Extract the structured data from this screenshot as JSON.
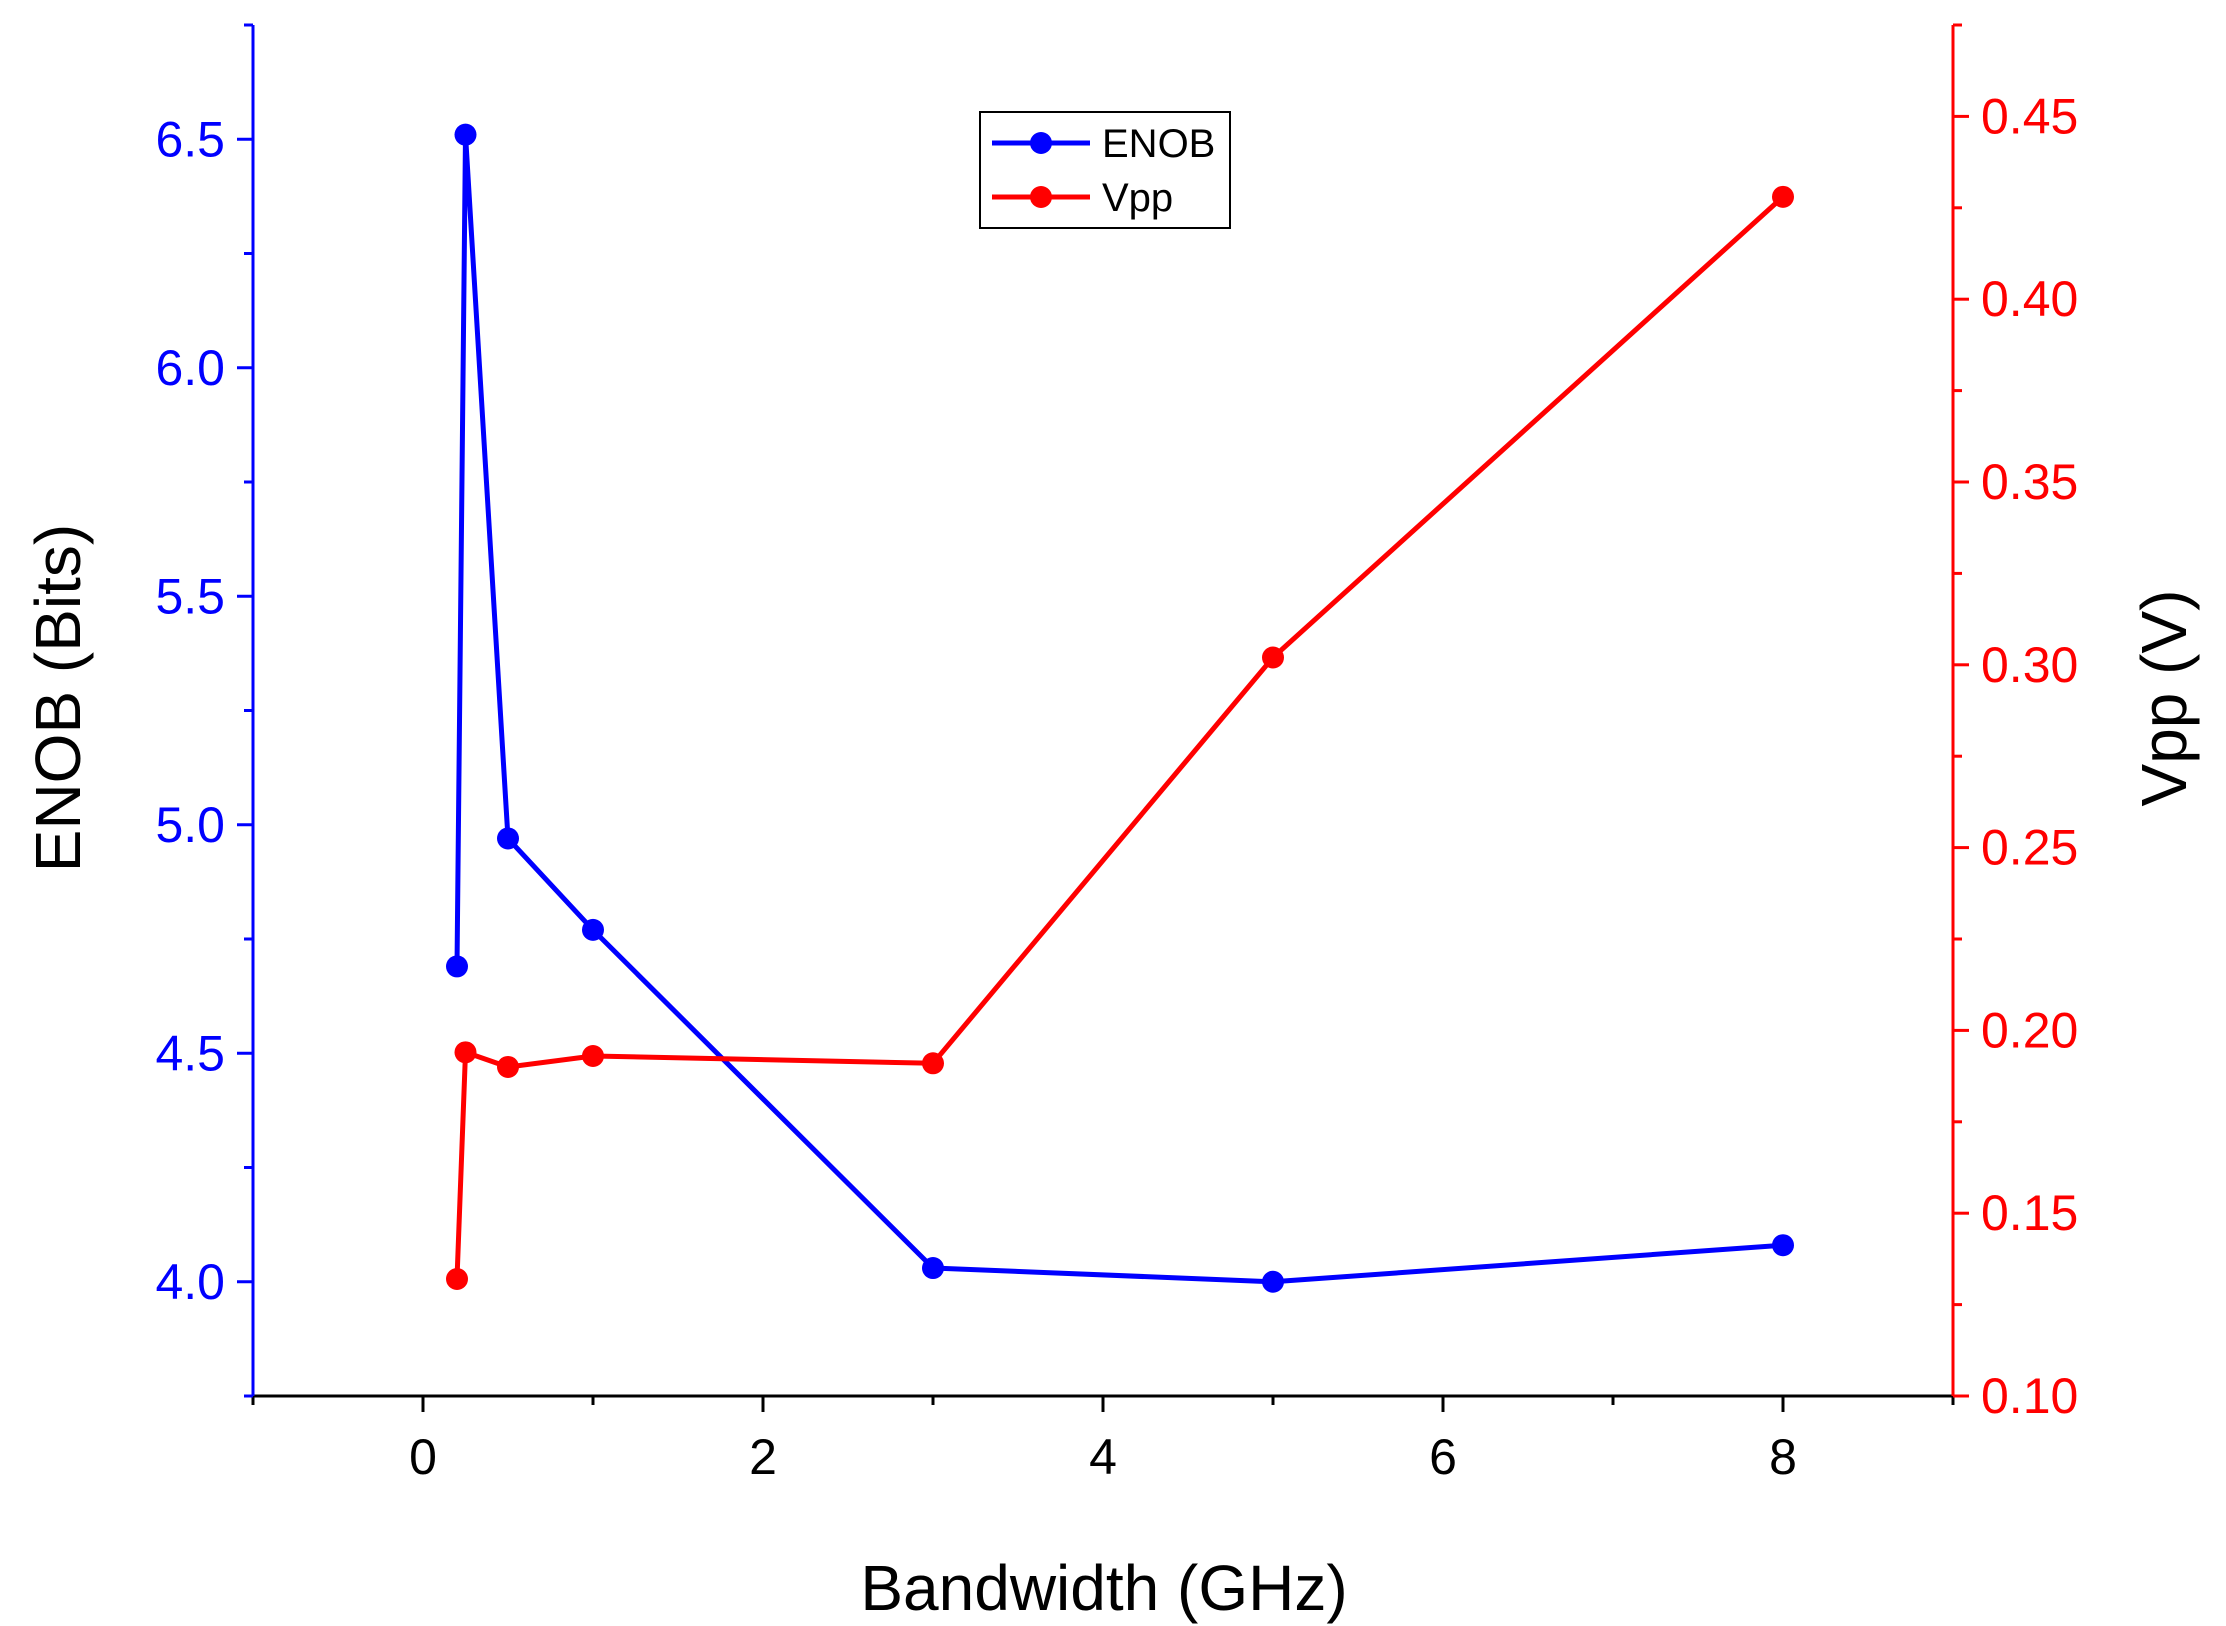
{
  "chart_data": {
    "type": "line",
    "title": "",
    "xlabel": "Bandwidth (GHz)",
    "ylabel": "ENOB (Bits)",
    "y2label": "Vpp (V)",
    "xlim": [
      -1,
      9
    ],
    "ylim": [
      3.75,
      6.75
    ],
    "y2lim": [
      0.1,
      0.475
    ],
    "x_ticks": [
      "0",
      "2",
      "4",
      "6",
      "8"
    ],
    "y_ticks": [
      "4.0",
      "4.5",
      "5.0",
      "5.5",
      "6.0",
      "6.5"
    ],
    "y2_ticks": [
      "0.10",
      "0.15",
      "0.20",
      "0.25",
      "0.30",
      "0.35",
      "0.40",
      "0.45"
    ],
    "grid": false,
    "legend_position": "top-center",
    "series": [
      {
        "name": "ENOB",
        "axis": "left",
        "color": "#0000ff",
        "x": [
          0.2,
          0.25,
          0.5,
          1,
          3,
          5,
          8
        ],
        "values": [
          4.69,
          6.51,
          4.97,
          4.77,
          4.03,
          4.0,
          4.08
        ]
      },
      {
        "name": "Vpp",
        "axis": "right",
        "color": "#ff0000",
        "x": [
          0.2,
          0.25,
          0.5,
          1,
          3,
          5,
          8
        ],
        "values": [
          0.132,
          0.194,
          0.19,
          0.193,
          0.191,
          0.302,
          0.428
        ]
      }
    ]
  }
}
